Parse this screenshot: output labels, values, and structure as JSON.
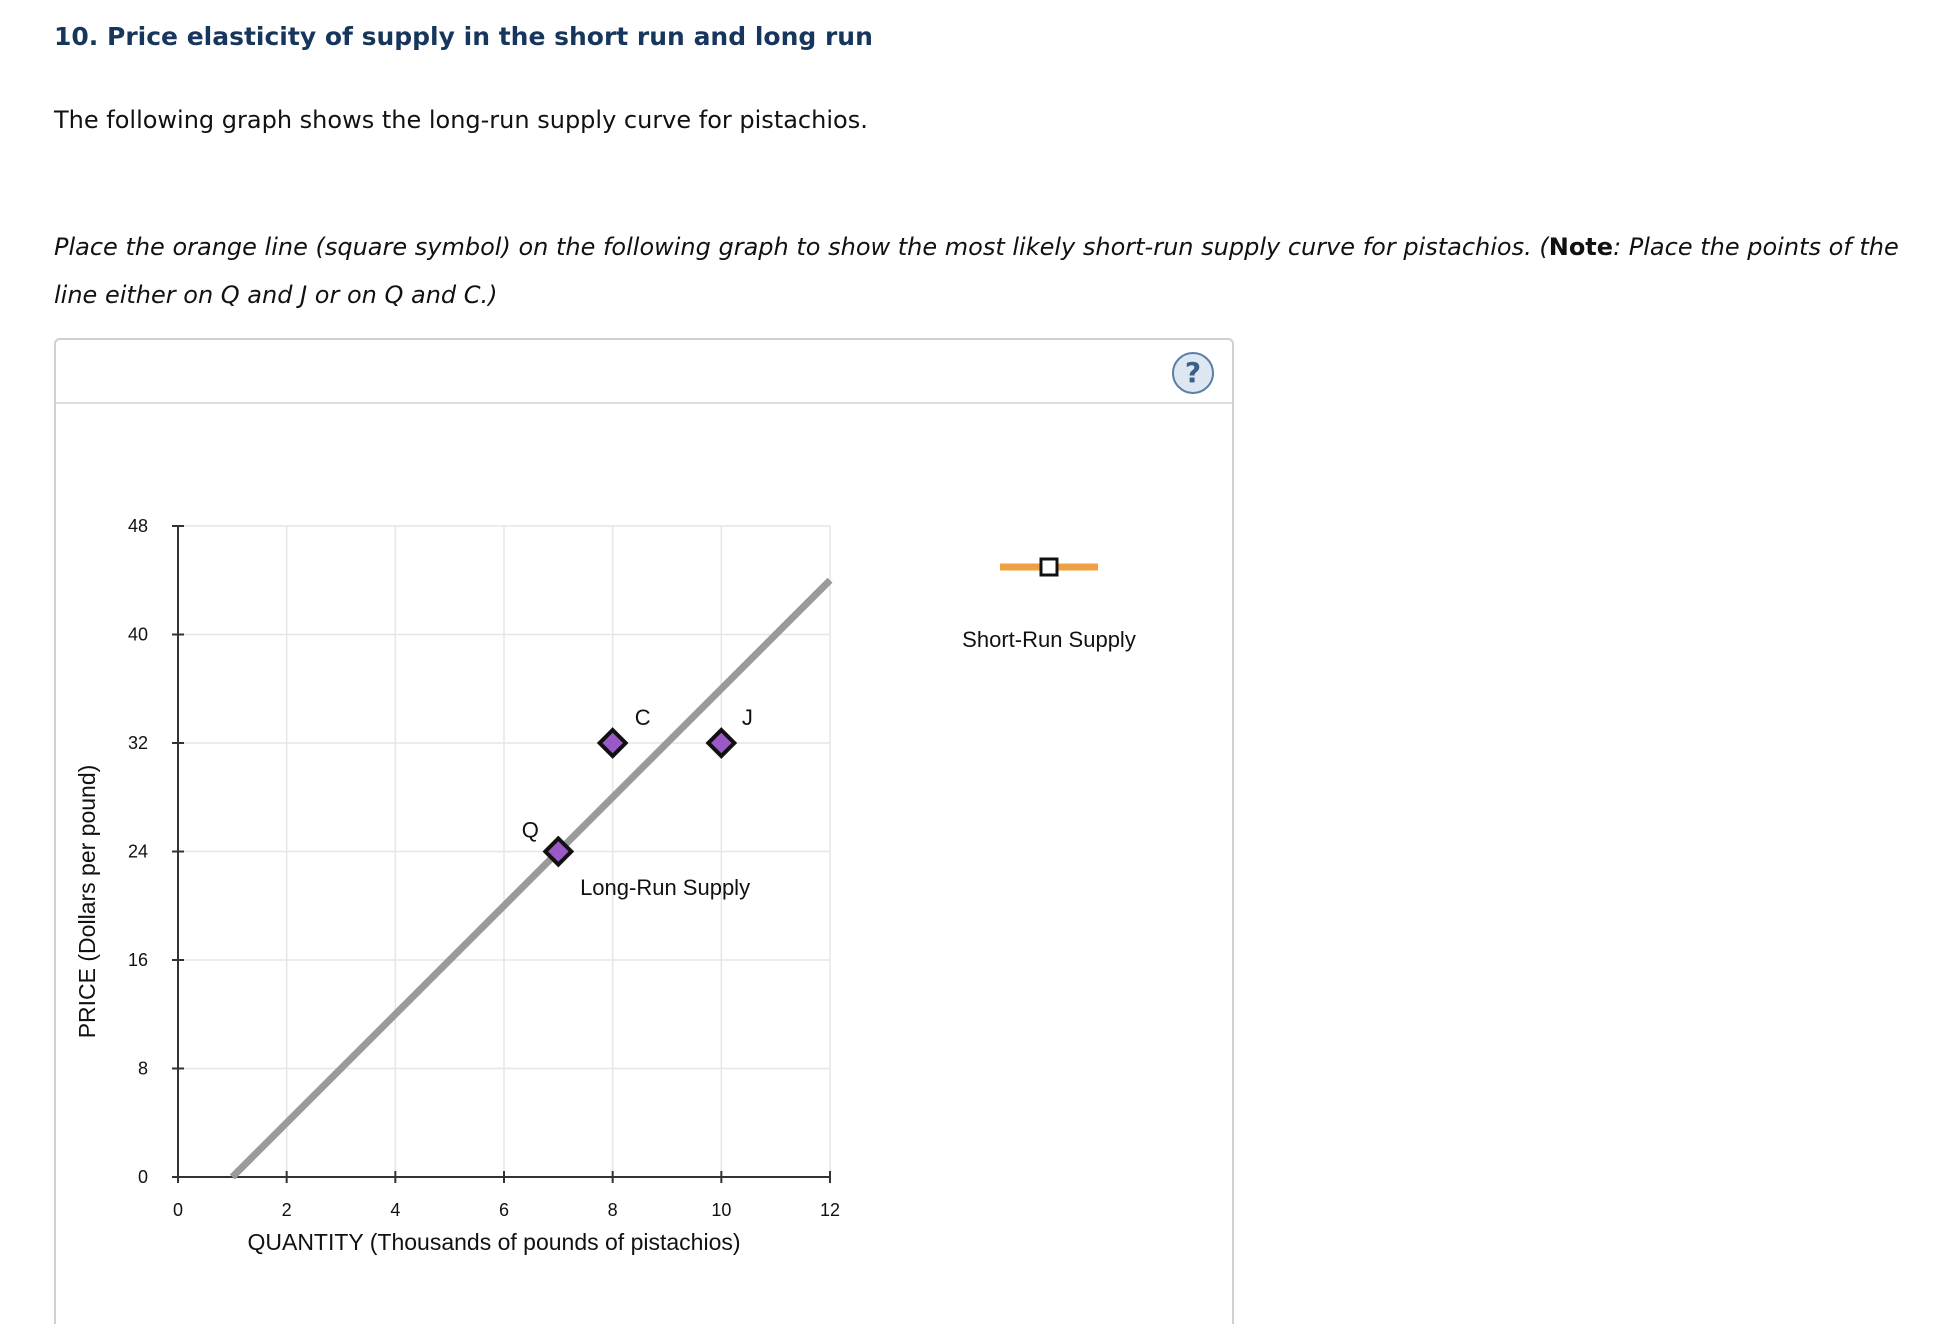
{
  "question": {
    "title": "10. Price elasticity of supply in the short run and long run",
    "intro": "The following graph shows the long-run supply curve for pistachios.",
    "instruction_before": "Place the orange line (square symbol) on the following graph to show the most likely short-run supply curve for pistachios. (",
    "instruction_note": "Note",
    "instruction_after": ": Place the points of the line either on Q and J or on Q and C.)"
  },
  "panel": {
    "help_label": "?"
  },
  "palette": {
    "grid": "#e6e6e6",
    "axis": "#333333",
    "long_run_line": "#9a9a9a",
    "point_fill": "#9b59c8",
    "point_stroke": "#111111",
    "tool_line": "#f0a040",
    "tool_marker": "#ffffff"
  },
  "tool": {
    "label": "Short-Run Supply",
    "icon": "orange-line-square-icon"
  },
  "chart_data": {
    "type": "line",
    "xlabel": "QUANTITY (Thousands of pounds of pistachios)",
    "ylabel": "PRICE (Dollars per pound)",
    "xlim": [
      0,
      12
    ],
    "ylim": [
      0,
      48
    ],
    "x_ticks": [
      0,
      2,
      4,
      6,
      8,
      10,
      12
    ],
    "y_ticks": [
      0,
      8,
      16,
      24,
      32,
      40,
      48
    ],
    "grid": true,
    "series": [
      {
        "name": "Long-Run Supply",
        "x": [
          1,
          12
        ],
        "y": [
          0,
          44
        ]
      }
    ],
    "points": [
      {
        "label": "Q",
        "x": 7,
        "y": 24
      },
      {
        "label": "C",
        "x": 8,
        "y": 32
      },
      {
        "label": "J",
        "x": 10,
        "y": 32
      }
    ]
  }
}
